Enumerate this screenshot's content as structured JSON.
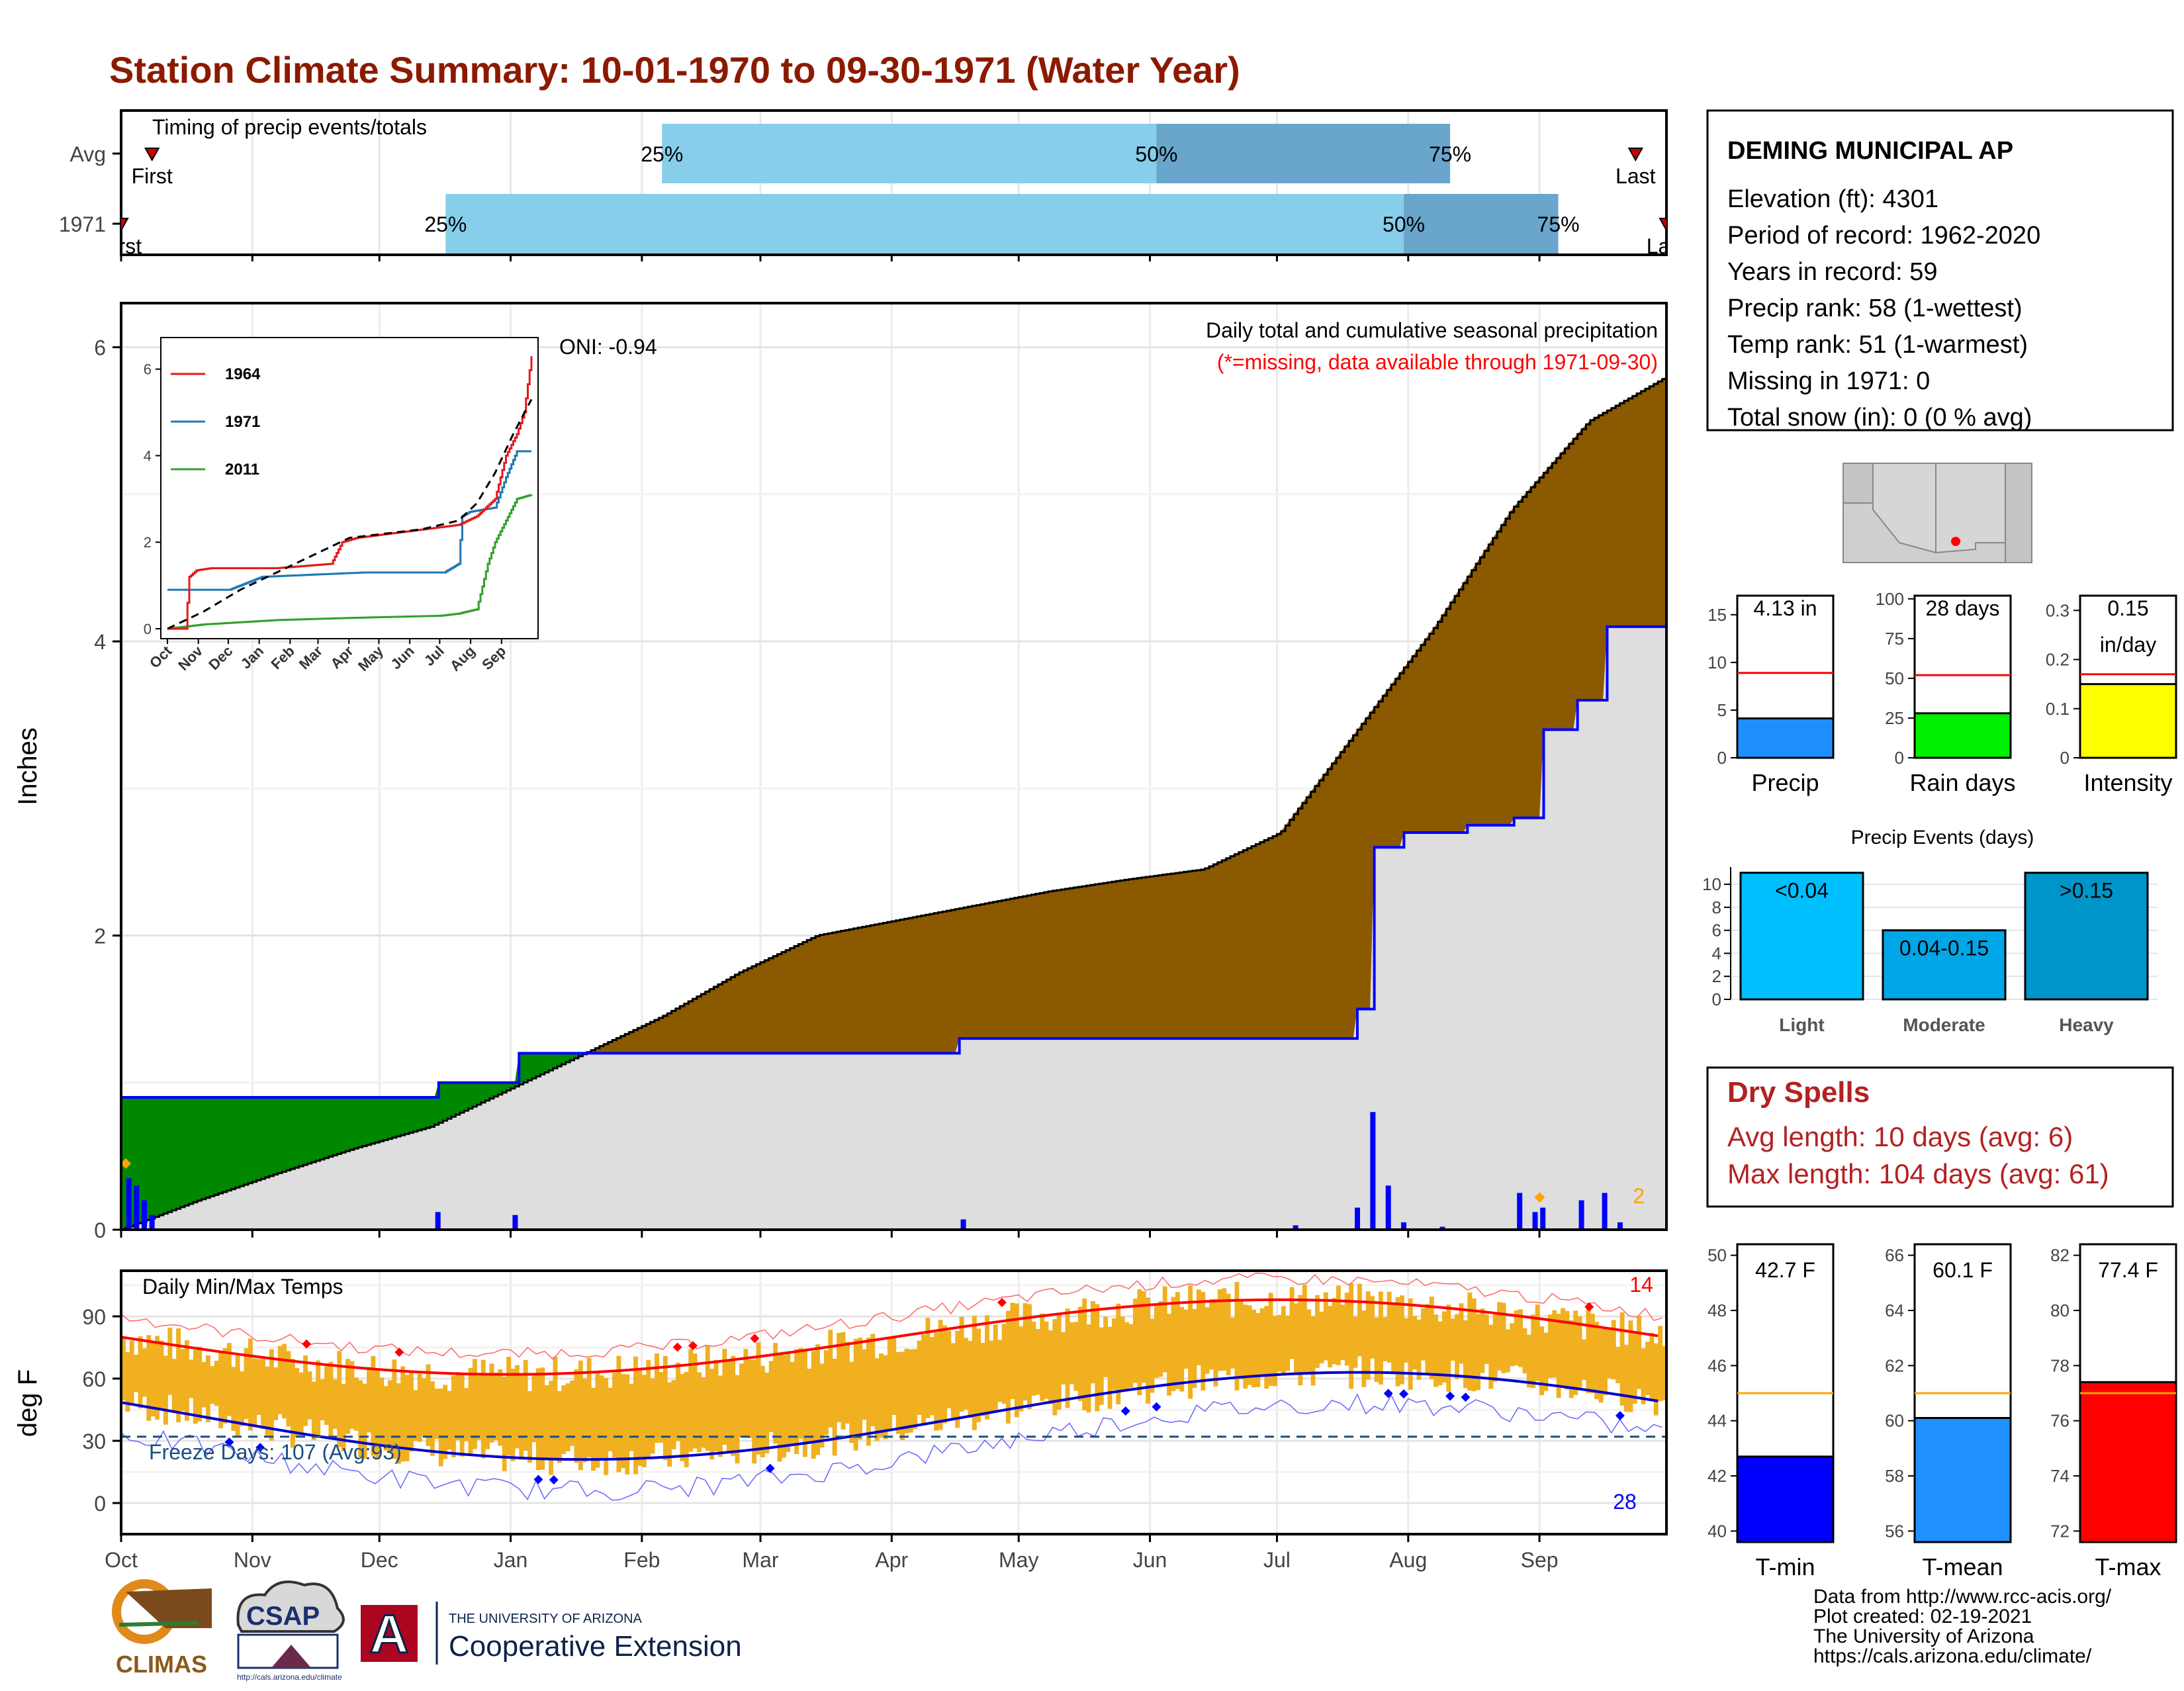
{
  "title": "Station Climate Summary: 10-01-1970 to 09-30-1971 (Water Year)",
  "timing": {
    "label": "Timing of precip events/totals",
    "rows": [
      {
        "name": "Avg",
        "first": "First",
        "last": "Last",
        "p25": 0.35,
        "p50": 0.67,
        "p75": 0.86,
        "firstFrac": 0.02,
        "lastFrac": 0.98
      },
      {
        "name": "1971",
        "first": "First",
        "last": "Last",
        "p25": 0.21,
        "p50": 0.83,
        "p75": 0.93,
        "firstFrac": 0.0,
        "lastFrac": 1.0
      }
    ],
    "p25_label": "25%",
    "p50_label": "50%",
    "p75_label": "75%"
  },
  "precip": {
    "ylabel": "Inches",
    "ylim": [
      0,
      6.3
    ],
    "yticks": [
      0,
      2,
      4,
      6
    ],
    "oni": "ONI: -0.94",
    "label1": "Daily total and cumulative seasonal precipitation",
    "label2": "(*=missing, data available through 1971-09-30)",
    "orange_count": "2",
    "avg_cum": [
      [
        0,
        0
      ],
      [
        0.05,
        0.2
      ],
      [
        0.1,
        0.38
      ],
      [
        0.15,
        0.55
      ],
      [
        0.2,
        0.7
      ],
      [
        0.25,
        0.95
      ],
      [
        0.3,
        1.2
      ],
      [
        0.35,
        1.45
      ],
      [
        0.4,
        1.75
      ],
      [
        0.45,
        2.0
      ],
      [
        0.5,
        2.1
      ],
      [
        0.55,
        2.2
      ],
      [
        0.6,
        2.3
      ],
      [
        0.65,
        2.38
      ],
      [
        0.7,
        2.45
      ],
      [
        0.75,
        2.7
      ],
      [
        0.8,
        3.4
      ],
      [
        0.85,
        4.1
      ],
      [
        0.9,
        4.9
      ],
      [
        0.95,
        5.5
      ],
      [
        1.0,
        5.8
      ]
    ],
    "yr_cum": [
      [
        0,
        0.9
      ],
      [
        0.17,
        0.9
      ],
      [
        0.205,
        1.0
      ],
      [
        0.255,
        1.2
      ],
      [
        0.54,
        1.3
      ],
      [
        0.76,
        1.3
      ],
      [
        0.8,
        1.5
      ],
      [
        0.81,
        2.6
      ],
      [
        0.83,
        2.7
      ],
      [
        0.87,
        2.75
      ],
      [
        0.9,
        2.8
      ],
      [
        0.92,
        3.4
      ],
      [
        0.94,
        3.6
      ],
      [
        0.96,
        4.1
      ],
      [
        1.0,
        4.1
      ]
    ],
    "daily_bars": [
      [
        0.005,
        0.35
      ],
      [
        0.01,
        0.3
      ],
      [
        0.015,
        0.2
      ],
      [
        0.02,
        0.1
      ],
      [
        0.205,
        0.12
      ],
      [
        0.255,
        0.1
      ],
      [
        0.545,
        0.07
      ],
      [
        0.76,
        0.03
      ],
      [
        0.8,
        0.15
      ],
      [
        0.81,
        0.8
      ],
      [
        0.82,
        0.3
      ],
      [
        0.83,
        0.05
      ],
      [
        0.855,
        0.02
      ],
      [
        0.905,
        0.25
      ],
      [
        0.915,
        0.12
      ],
      [
        0.92,
        0.15
      ],
      [
        0.945,
        0.2
      ],
      [
        0.96,
        0.25
      ],
      [
        0.97,
        0.05
      ]
    ],
    "orange_points": [
      [
        0.003,
        0.45
      ],
      [
        0.918,
        0.22
      ]
    ]
  },
  "inset": {
    "series": [
      {
        "name": "1964",
        "color": "#e31a1c"
      },
      {
        "name": "1971",
        "color": "#1f78b4"
      },
      {
        "name": "2011",
        "color": "#33a02c"
      }
    ],
    "xticks": [
      "Oct",
      "Nov",
      "Dec",
      "Jan",
      "Feb",
      "Mar",
      "Apr",
      "May",
      "Jun",
      "Jul",
      "Aug",
      "Sep"
    ],
    "yticks": [
      0,
      2,
      4,
      6
    ],
    "ylim": [
      0,
      6.5
    ],
    "s1964": [
      [
        0,
        0
      ],
      [
        0.05,
        0
      ],
      [
        0.06,
        1.2
      ],
      [
        0.08,
        1.35
      ],
      [
        0.12,
        1.4
      ],
      [
        0.3,
        1.4
      ],
      [
        0.45,
        1.5
      ],
      [
        0.48,
        2.0
      ],
      [
        0.52,
        2.1
      ],
      [
        0.8,
        2.4
      ],
      [
        0.85,
        2.6
      ],
      [
        0.9,
        3.0
      ],
      [
        0.93,
        4.0
      ],
      [
        0.96,
        4.5
      ],
      [
        0.98,
        5.0
      ],
      [
        1.0,
        6.3
      ]
    ],
    "s1971": [
      [
        0,
        0.9
      ],
      [
        0.17,
        0.9
      ],
      [
        0.2,
        1.0
      ],
      [
        0.26,
        1.2
      ],
      [
        0.54,
        1.3
      ],
      [
        0.76,
        1.3
      ],
      [
        0.8,
        1.5
      ],
      [
        0.81,
        2.6
      ],
      [
        0.83,
        2.7
      ],
      [
        0.9,
        2.8
      ],
      [
        0.93,
        3.5
      ],
      [
        0.96,
        4.1
      ],
      [
        1.0,
        4.1
      ]
    ],
    "s2011": [
      [
        0,
        0
      ],
      [
        0.1,
        0.1
      ],
      [
        0.3,
        0.2
      ],
      [
        0.5,
        0.25
      ],
      [
        0.75,
        0.3
      ],
      [
        0.8,
        0.35
      ],
      [
        0.85,
        0.45
      ],
      [
        0.88,
        1.5
      ],
      [
        0.9,
        2.0
      ],
      [
        0.93,
        2.5
      ],
      [
        0.96,
        3.0
      ],
      [
        1.0,
        3.1
      ]
    ],
    "avg": [
      [
        0,
        0
      ],
      [
        0.1,
        0.4
      ],
      [
        0.2,
        0.9
      ],
      [
        0.3,
        1.3
      ],
      [
        0.4,
        1.7
      ],
      [
        0.5,
        2.1
      ],
      [
        0.6,
        2.2
      ],
      [
        0.7,
        2.3
      ],
      [
        0.8,
        2.5
      ],
      [
        0.85,
        2.9
      ],
      [
        0.9,
        3.6
      ],
      [
        0.95,
        4.5
      ],
      [
        1.0,
        5.3
      ]
    ]
  },
  "temps": {
    "label": "Daily Min/Max Temps",
    "ylabel": "deg F",
    "yticks": [
      0,
      30,
      60,
      90
    ],
    "ylim": [
      -15,
      112
    ],
    "freeze_label": "Freeze Days: 107 (Avg:93)",
    "high_count": "14",
    "low_count": "28",
    "xticks": [
      "Oct",
      "Nov",
      "Dec",
      "Jan",
      "Feb",
      "Mar",
      "Apr",
      "May",
      "Jun",
      "Jul",
      "Aug",
      "Sep"
    ]
  },
  "station": {
    "name": "DEMING MUNICIPAL AP",
    "lines": [
      "Elevation (ft): 4301",
      "Period of record: 1962-2020",
      "Years in record: 59",
      "Precip rank: 58 (1-wettest)",
      "Temp rank: 51 (1-warmest)",
      "Missing in 1971: 0",
      "Total snow (in): 0 (0 % avg)"
    ]
  },
  "mini_precip": [
    {
      "label": "Precip",
      "value_label": "4.13 in",
      "value": 4.13,
      "avg": 8.9,
      "ymax": 17,
      "yticks": [
        0,
        5,
        10,
        15
      ],
      "color": "#1f8fff"
    },
    {
      "label": "Rain days",
      "value_label": "28 days",
      "value": 28,
      "avg": 52,
      "ymax": 102,
      "yticks": [
        0,
        25,
        50,
        75,
        100
      ],
      "color": "#00ee00"
    },
    {
      "label": "Intensity",
      "value_label": "0.15",
      "value_label2": "in/day",
      "value": 0.15,
      "avg": 0.17,
      "ymax": 0.33,
      "yticks": [
        0.0,
        0.1,
        0.2,
        0.3
      ],
      "color": "#ffff00"
    }
  ],
  "events": {
    "title": "Precip Events (days)",
    "bars": [
      {
        "label": "Light",
        "inner": "<0.04",
        "value": 11,
        "color": "#00bfff"
      },
      {
        "label": "Moderate",
        "inner": "0.04-0.15",
        "value": 6,
        "color": "#00a6e6"
      },
      {
        "label": "Heavy",
        "inner": ">0.15",
        "value": 11,
        "color": "#0095c8"
      }
    ],
    "yticks": [
      0,
      2,
      4,
      6,
      8,
      10
    ],
    "ymax": 11.5
  },
  "dry_spells": {
    "title": "Dry Spells",
    "line1": "Avg length: 10 days (avg: 6)",
    "line2": "Max length: 104 days (avg: 61)"
  },
  "mini_temp": [
    {
      "label": "T-min",
      "value_label": "42.7 F",
      "value": 42.7,
      "avg": 45.0,
      "ymin": 39.6,
      "ymax": 50.4,
      "yticks": [
        40,
        42,
        44,
        46,
        48,
        50
      ],
      "color": "#0000ff"
    },
    {
      "label": "T-mean",
      "value_label": "60.1 F",
      "value": 60.1,
      "avg": 61.0,
      "ymin": 55.6,
      "ymax": 66.4,
      "yticks": [
        56,
        58,
        60,
        62,
        64,
        66
      ],
      "color": "#1e90ff"
    },
    {
      "label": "T-max",
      "value_label": "77.4 F",
      "value": 77.4,
      "avg": 77.0,
      "ymin": 71.6,
      "ymax": 82.4,
      "yticks": [
        72,
        74,
        76,
        78,
        80,
        82
      ],
      "color": "#ff0000"
    }
  ],
  "footer": {
    "lines": [
      "Data from http://www.rcc-acis.org/",
      "Plot created: 02-19-2021",
      "The University of Arizona",
      "https://cals.arizona.edu/climate/"
    ],
    "logo1": "CLIMAS",
    "logo2": "CSAP",
    "logo2_url": "http://cals.arizona.edu/climate",
    "ua_line1": "THE UNIVERSITY OF ARIZONA",
    "ua_line2": "Cooperative Extension",
    "ua_letter": "A"
  },
  "colors": {
    "title": "#8b1a00",
    "brown": "#8b5a00",
    "green": "#008800",
    "gray_fill": "#dedede",
    "blue": "#0000ff",
    "orange_bar": "#f0b020",
    "dry_red": "#b22222",
    "bar_light": "#87ceeb",
    "bar_dark": "#6aa5cc"
  }
}
